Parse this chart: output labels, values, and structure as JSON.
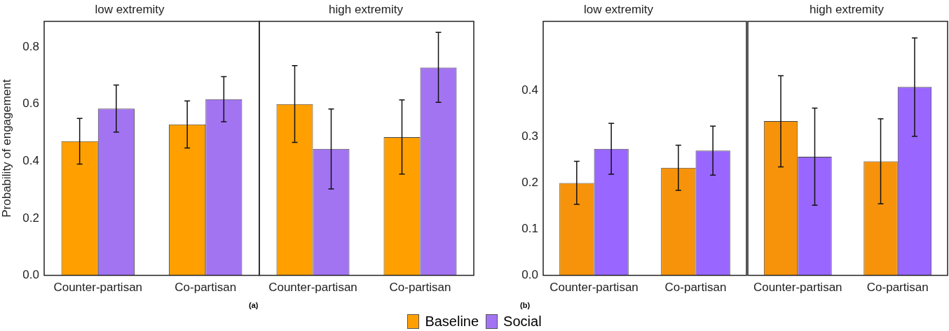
{
  "chart_data": [
    {
      "type": "bar",
      "title": "low extremity",
      "ylabel": "Probability of engagement",
      "categories": [
        "Counter-partisan",
        "Co-partisan"
      ],
      "ylim": [
        0,
        0.89
      ],
      "yticks": [
        {
          "value": 0,
          "label": "0.0"
        },
        0.2,
        0.4,
        0.6,
        0.8
      ],
      "legend": "bottom",
      "annotations": [
        "(a)"
      ],
      "series": [
        {
          "name": "Baseline",
          "color": "#ffa000",
          "values": [
            0.47,
            0.529
          ],
          "errors": [
            [
              0.39,
              0.55
            ],
            [
              0.446,
              0.611
            ]
          ]
        },
        {
          "name": "Social",
          "color": "#a374f2",
          "values": [
            0.584,
            0.617
          ],
          "errors": [
            [
              0.502,
              0.667
            ],
            [
              0.538,
              0.696
            ]
          ]
        }
      ]
    },
    {
      "type": "bar",
      "title": "high extremity",
      "categories": [
        "Counter-partisan",
        "Co-partisan"
      ],
      "ylim": [
        0,
        0.89
      ],
      "tick_labels": "x",
      "series": [
        {
          "color": "#ffa000",
          "values": [
            0.6,
            0.484
          ],
          "errors": [
            [
              0.466,
              0.735
            ],
            [
              0.355,
              0.615
            ]
          ]
        },
        {
          "color": "#a374f2",
          "values": [
            0.443,
            0.728
          ],
          "errors": [
            [
              0.303,
              0.583
            ],
            [
              0.606,
              0.851
            ]
          ]
        }
      ]
    },
    {
      "type": "bar",
      "title": "low extremity",
      "categories": [
        "Counter-partisan",
        "Co-partisan"
      ],
      "ylim": [
        0,
        0.55
      ],
      "yticks": [
        {
          "value": 0,
          "label": "0.0"
        },
        0.1,
        0.2,
        0.3,
        0.4
      ],
      "annotations": [
        "(b)"
      ],
      "series": [
        {
          "color": "#f7930a",
          "values": [
            0.2,
            0.233
          ],
          "errors": [
            [
              0.154,
              0.247
            ],
            [
              0.184,
              0.282
            ]
          ]
        },
        {
          "color": "#9966ff",
          "values": [
            0.274,
            0.27
          ],
          "errors": [
            [
              0.219,
              0.329
            ],
            [
              0.217,
              0.323
            ]
          ]
        }
      ]
    },
    {
      "type": "bar",
      "title": "high extremity",
      "categories": [
        "Counter-partisan",
        "Co-partisan"
      ],
      "ylim": [
        0,
        0.55
      ],
      "tick_labels": "x",
      "series": [
        {
          "color": "#f7930a",
          "values": [
            0.334,
            0.247
          ],
          "errors": [
            [
              0.235,
              0.432
            ],
            [
              0.155,
              0.339
            ]
          ]
        },
        {
          "color": "#9966ff",
          "values": [
            0.257,
            0.408
          ],
          "errors": [
            [
              0.152,
              0.362
            ],
            [
              0.301,
              0.514
            ]
          ]
        }
      ]
    }
  ]
}
